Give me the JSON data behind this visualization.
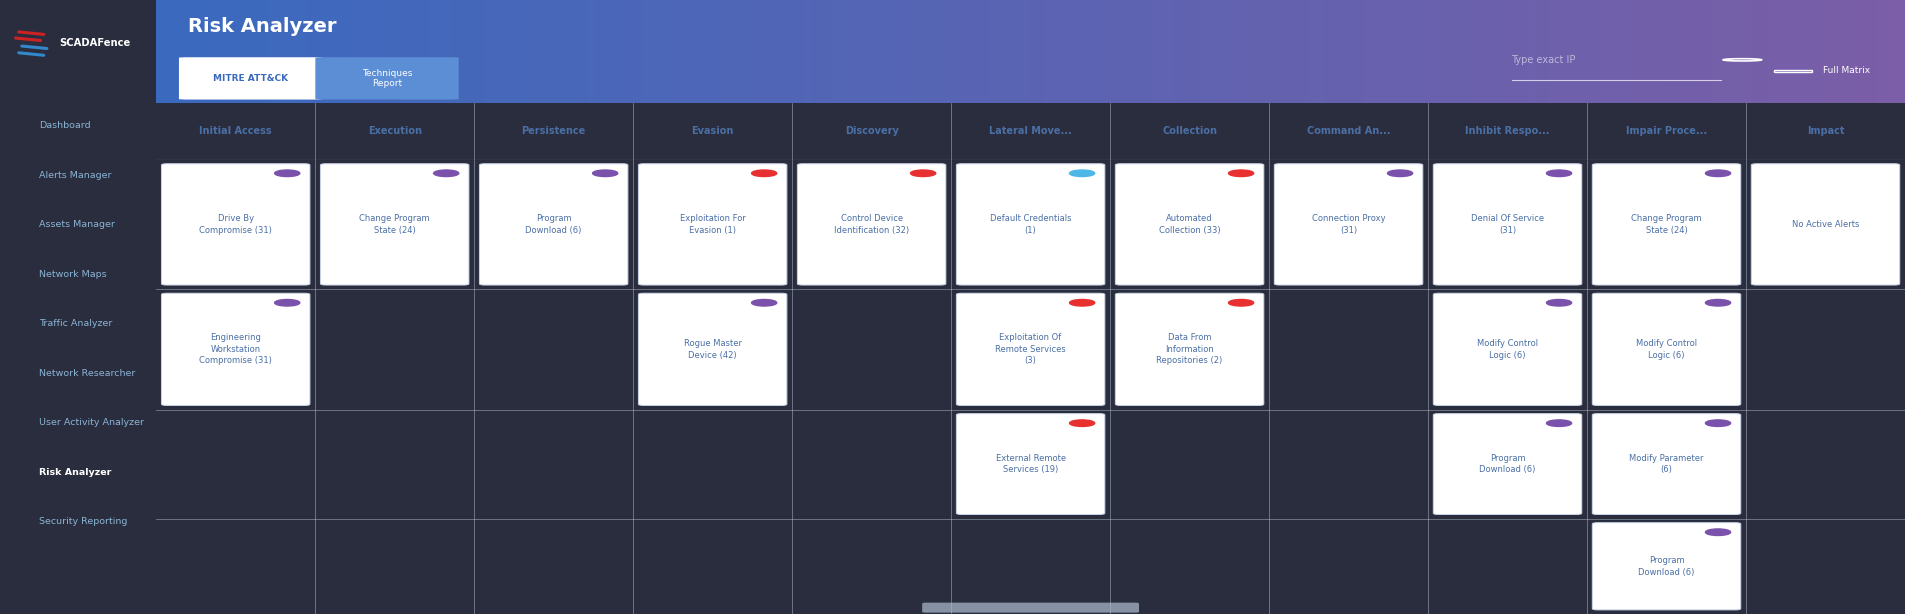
{
  "sidebar_bg": "#2a2d3e",
  "sidebar_items": [
    "Dashboard",
    "Alerts Manager",
    "Assets Manager",
    "Network Maps",
    "Traffic Analyzer",
    "Network Researcher",
    "User Activity Analyzer",
    "Risk Analyzer",
    "Security Reporting"
  ],
  "sidebar_active": "Risk Analyzer",
  "header_title": "Risk Analyzer",
  "header_gradient_left": "#3a6abf",
  "header_gradient_right": "#7b5ea7",
  "tab1": "MITRE ATT&CK",
  "tab2": "Techniques\nReport",
  "search_placeholder": "Type exact IP",
  "full_matrix_label": "Full Matrix",
  "column_headers": [
    "Initial Access",
    "Execution",
    "Persistence",
    "Evasion",
    "Discovery",
    "Lateral Move...",
    "Collection",
    "Command An...",
    "Inhibit Respo...",
    "Impair Proce...",
    "Impact"
  ],
  "cards": [
    {
      "col": 0,
      "row": 0,
      "text": "Drive By\nCompromise (31)",
      "dot_color": "#7b52ab"
    },
    {
      "col": 1,
      "row": 0,
      "text": "Change Program\nState (24)",
      "dot_color": "#7b52ab"
    },
    {
      "col": 2,
      "row": 0,
      "text": "Program\nDownload (6)",
      "dot_color": "#7b52ab"
    },
    {
      "col": 3,
      "row": 0,
      "text": "Exploitation For\nEvasion (1)",
      "dot_color": "#e83030"
    },
    {
      "col": 4,
      "row": 0,
      "text": "Control Device\nIdentification (32)",
      "dot_color": "#e83030"
    },
    {
      "col": 5,
      "row": 0,
      "text": "Default Credentials\n(1)",
      "dot_color": "#4db8e8"
    },
    {
      "col": 6,
      "row": 0,
      "text": "Automated\nCollection (33)",
      "dot_color": "#e83030"
    },
    {
      "col": 7,
      "row": 0,
      "text": "Connection Proxy\n(31)",
      "dot_color": "#7b52ab"
    },
    {
      "col": 8,
      "row": 0,
      "text": "Denial Of Service\n(31)",
      "dot_color": "#7b52ab"
    },
    {
      "col": 9,
      "row": 0,
      "text": "Change Program\nState (24)",
      "dot_color": "#7b52ab"
    },
    {
      "col": 10,
      "row": 0,
      "text": "No Active Alerts",
      "dot_color": null
    },
    {
      "col": 0,
      "row": 1,
      "text": "Engineering\nWorkstation\nCompromise (31)",
      "dot_color": "#7b52ab"
    },
    {
      "col": 3,
      "row": 1,
      "text": "Rogue Master\nDevice (42)",
      "dot_color": "#7b52ab"
    },
    {
      "col": 5,
      "row": 1,
      "text": "Exploitation Of\nRemote Services\n(3)",
      "dot_color": "#e83030"
    },
    {
      "col": 6,
      "row": 1,
      "text": "Data From\nInformation\nRepositories (2)",
      "dot_color": "#e83030"
    },
    {
      "col": 8,
      "row": 1,
      "text": "Modify Control\nLogic (6)",
      "dot_color": "#7b52ab"
    },
    {
      "col": 9,
      "row": 1,
      "text": "Modify Control\nLogic (6)",
      "dot_color": "#7b52ab"
    },
    {
      "col": 5,
      "row": 2,
      "text": "External Remote\nServices (19)",
      "dot_color": "#e83030"
    },
    {
      "col": 8,
      "row": 2,
      "text": "Program\nDownload (6)",
      "dot_color": "#7b52ab"
    },
    {
      "col": 9,
      "row": 2,
      "text": "Modify Parameter\n(6)",
      "dot_color": "#7b52ab"
    },
    {
      "col": 9,
      "row": 3,
      "text": "Program\nDownload (6)",
      "dot_color": "#7b52ab"
    }
  ],
  "card_bg": "#ffffff",
  "card_border": "#d0d8e8",
  "card_text_color": "#4a6fa5",
  "col_header_color": "#4a6fa5",
  "main_bg": "#eef2f8",
  "n_cols": 11,
  "n_rows": 4,
  "sidebar_text_color": "#8ab4d4",
  "sidebar_active_color": "#ffffff",
  "logo_text": "SCADAFence",
  "search_color": [
    1.0,
    1.0,
    1.0,
    0.55
  ]
}
